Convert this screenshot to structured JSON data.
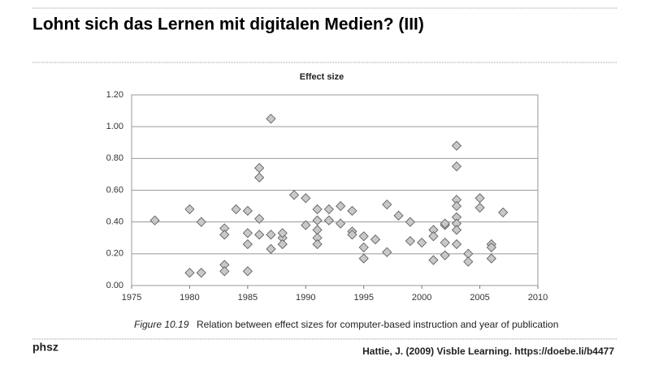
{
  "header": {
    "title": "Lohnt sich das Lernen mit digitalen Medien? (III)"
  },
  "footer": {
    "logo": "phsz",
    "citation": "Hattie, J. (2009) Visble Learning. https://doebe.li/b4477"
  },
  "chart_data": {
    "type": "scatter",
    "title": "Effect size",
    "caption_label": "Figure 10.19",
    "caption": "Relation between effect sizes for computer-based instruction and year of publication",
    "color": "#c8c8c8",
    "edge_color": "#555555",
    "grid": true,
    "x": [
      1977,
      1980,
      1980,
      1981,
      1981,
      1983,
      1983,
      1983,
      1983,
      1984,
      1985,
      1985,
      1985,
      1985,
      1986,
      1986,
      1986,
      1986,
      1987,
      1987,
      1987,
      1988,
      1988,
      1988,
      1989,
      1990,
      1990,
      1991,
      1991,
      1991,
      1991,
      1991,
      1992,
      1992,
      1993,
      1993,
      1994,
      1994,
      1994,
      1995,
      1995,
      1995,
      1996,
      1997,
      1997,
      1998,
      1999,
      1999,
      2000,
      2001,
      2001,
      2001,
      2002,
      2002,
      2002,
      2002,
      2003,
      2003,
      2003,
      2003,
      2003,
      2003,
      2003,
      2003,
      2004,
      2004,
      2005,
      2005,
      2006,
      2006,
      2006,
      2007
    ],
    "y": [
      0.41,
      0.48,
      0.08,
      0.4,
      0.08,
      0.36,
      0.32,
      0.13,
      0.09,
      0.48,
      0.47,
      0.33,
      0.26,
      0.09,
      0.74,
      0.68,
      0.42,
      0.32,
      1.05,
      0.32,
      0.23,
      0.3,
      0.33,
      0.26,
      0.57,
      0.55,
      0.38,
      0.48,
      0.41,
      0.35,
      0.3,
      0.26,
      0.48,
      0.41,
      0.5,
      0.39,
      0.47,
      0.34,
      0.32,
      0.31,
      0.24,
      0.17,
      0.29,
      0.51,
      0.21,
      0.44,
      0.4,
      0.28,
      0.27,
      0.35,
      0.31,
      0.16,
      0.38,
      0.39,
      0.27,
      0.19,
      0.88,
      0.75,
      0.54,
      0.5,
      0.43,
      0.39,
      0.35,
      0.26,
      0.2,
      0.15,
      0.55,
      0.49,
      0.26,
      0.24,
      0.17,
      0.46
    ],
    "xlim": [
      1975,
      2010
    ],
    "xticks": [
      1975,
      1980,
      1985,
      1990,
      1995,
      2000,
      2005,
      2010
    ],
    "ylim": [
      0,
      1.2
    ],
    "yticks": [
      {
        "value": 0,
        "label": "0.00"
      },
      {
        "value": 0.2,
        "label": "0.20"
      },
      {
        "value": 0.4,
        "label": "0.40"
      },
      {
        "value": 0.6,
        "label": "0.60"
      },
      {
        "value": 0.8,
        "label": "0.80"
      },
      {
        "value": 1,
        "label": "1.00"
      },
      {
        "value": 1.2,
        "label": "1.20"
      }
    ]
  }
}
